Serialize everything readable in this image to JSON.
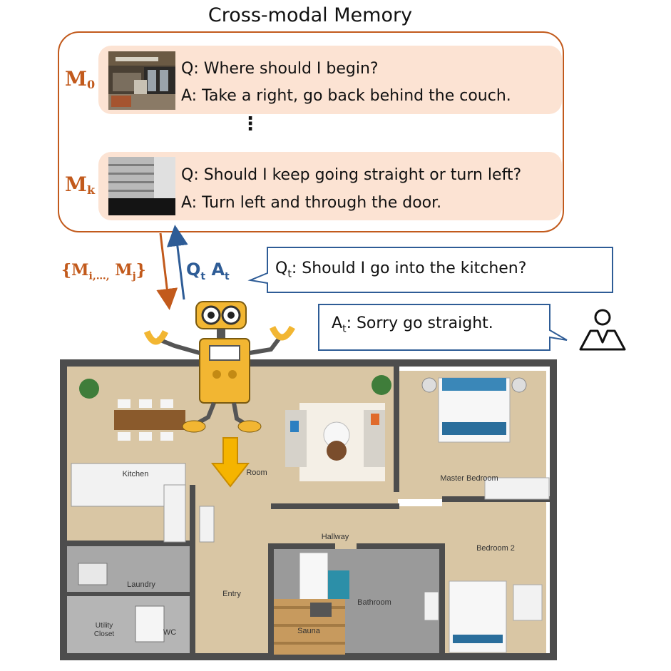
{
  "title": "Cross-modal Memory",
  "memory": {
    "rows": [
      {
        "label_main": "M",
        "label_sub": "0",
        "question": "Q: Where should I begin?",
        "answer": "A: Take a right, go back behind the couch."
      },
      {
        "label_main": "M",
        "label_sub": "k",
        "question": "Q: Should I keep going straight or turn left?",
        "answer": "A: Turn left and through the door."
      }
    ],
    "ellipsis": "⋮"
  },
  "retrieve": {
    "open": "{M",
    "sub": "i,…,",
    "mid": " M",
    "sub2": "j",
    "close": "}"
  },
  "update": {
    "q": "Q",
    "q_sub": "t",
    "a": " A",
    "a_sub": "t"
  },
  "question_bubble": {
    "prefix": "Q",
    "sub": "t",
    "text": ": Should I go into the kitchen?"
  },
  "answer_bubble": {
    "prefix": "A",
    "sub": "t",
    "text": ": Sorry go straight."
  },
  "rooms": {
    "kitchen": "Kitchen",
    "room": "Room",
    "master_bedroom": "Master Bedroom",
    "hallway": "Hallway",
    "bedroom2": "Bedroom 2",
    "laundry": "Laundry",
    "entry": "Entry",
    "bathroom": "Bathroom",
    "utility": "Utility\nCloset",
    "wc": "WC",
    "sauna": "Sauna"
  },
  "colors": {
    "memory": "#c25a1c",
    "memory_fill": "#fce3d3",
    "dialog": "#2e5c96",
    "robot": "#f2b632",
    "floor_wood": "#d9c6a4",
    "floor_tile": "#9a9a9a",
    "wall": "#4d4d4d"
  },
  "icons": [
    "robot-icon",
    "user-icon",
    "down-arrow-icon"
  ]
}
